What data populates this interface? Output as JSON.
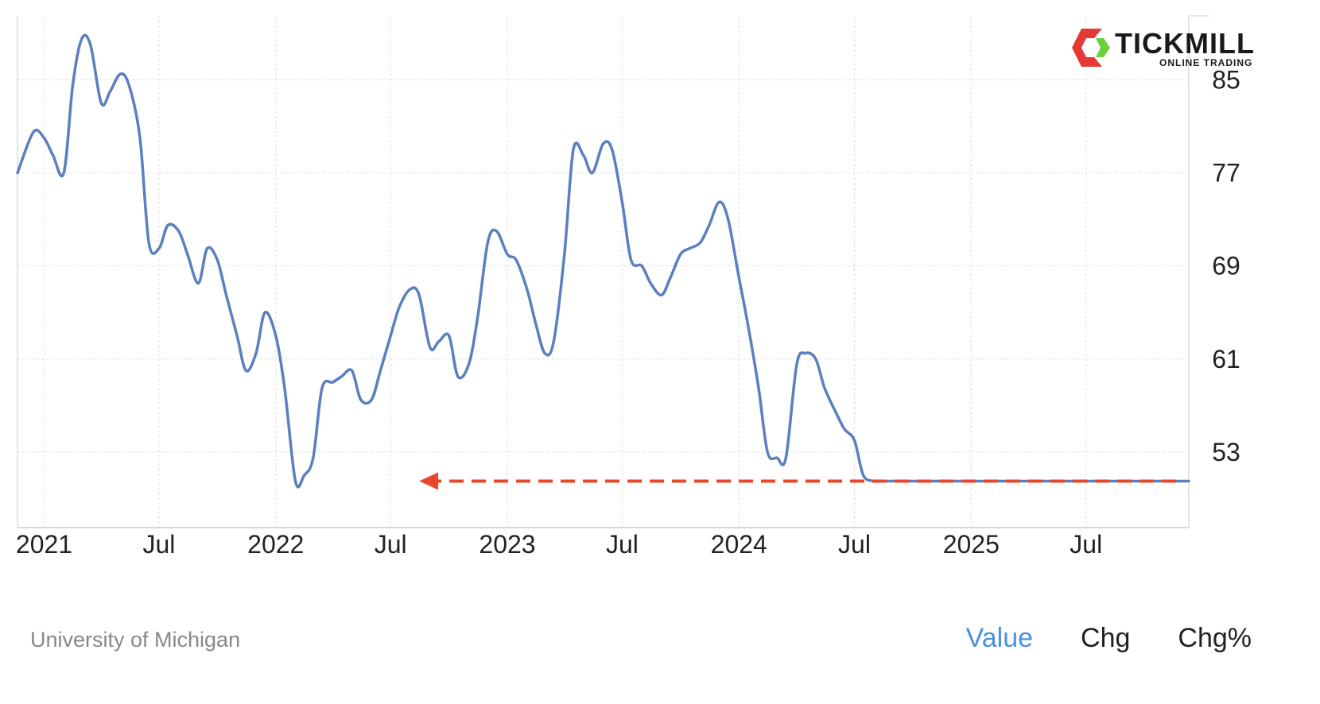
{
  "brand": {
    "name": "TICKMILL",
    "tagline": "ONLINE TRADING",
    "colors": {
      "red": "#e53935",
      "green": "#6ccf3c",
      "dark": "#1a1a1a"
    }
  },
  "source": "University of Michigan",
  "tabs": [
    {
      "label": "Value",
      "active": true
    },
    {
      "label": "Chg",
      "active": false
    },
    {
      "label": "Chg%",
      "active": false
    }
  ],
  "colors": {
    "line": "#5b7fbf",
    "arrow": "#e8472b",
    "grid": "#dddddd",
    "active_tab": "#4a90e2"
  },
  "chart_data": {
    "type": "line",
    "title": "",
    "xlabel": "",
    "ylabel": "",
    "x_ticks": [
      "2021",
      "Jul",
      "2022",
      "Jul",
      "2023",
      "Jul",
      "2024",
      "Jul",
      "2025",
      "Jul"
    ],
    "y_ticks": [
      85,
      77,
      69,
      61,
      53
    ],
    "ylim": [
      46.5,
      90.5
    ],
    "xlim": [
      "2020-11-20",
      "2025-12-10"
    ],
    "grid": true,
    "y_axis_position": "right",
    "series": [
      {
        "x": [
          "2020-11-20",
          "2020-12-15",
          "2021-01-01",
          "2021-01-15",
          "2021-02-01",
          "2021-02-15",
          "2021-03-01",
          "2021-03-15",
          "2021-04-01",
          "2021-04-15",
          "2021-05-01",
          "2021-05-15",
          "2021-06-01",
          "2021-06-15",
          "2021-07-01",
          "2021-07-15",
          "2021-08-01",
          "2021-08-15",
          "2021-09-01",
          "2021-09-15",
          "2021-10-01",
          "2021-10-15",
          "2021-11-01",
          "2021-11-15",
          "2021-12-01",
          "2021-12-15",
          "2022-01-01",
          "2022-01-15",
          "2022-02-01",
          "2022-02-15",
          "2022-03-01",
          "2022-03-15",
          "2022-04-01",
          "2022-04-15",
          "2022-05-01",
          "2022-05-15",
          "2022-06-01",
          "2022-06-15",
          "2022-07-01",
          "2022-07-15",
          "2022-08-01",
          "2022-08-15",
          "2022-09-01",
          "2022-09-15",
          "2022-10-01",
          "2022-10-15",
          "2022-11-01",
          "2022-11-15",
          "2022-12-01",
          "2022-12-15",
          "2023-01-01",
          "2023-01-15",
          "2023-02-01",
          "2023-02-15",
          "2023-03-01",
          "2023-03-15",
          "2023-04-01",
          "2023-04-15",
          "2023-05-01",
          "2023-05-15",
          "2023-06-01",
          "2023-06-15",
          "2023-07-01",
          "2023-07-15",
          "2023-08-01",
          "2023-08-15",
          "2023-09-01",
          "2023-09-15",
          "2023-10-01",
          "2023-10-15",
          "2023-11-01",
          "2023-11-15",
          "2023-12-01",
          "2023-12-15",
          "2024-01-01",
          "2024-01-15",
          "2024-02-01",
          "2024-02-15",
          "2024-03-01",
          "2024-03-15",
          "2024-04-01",
          "2024-04-15",
          "2024-05-01",
          "2024-05-15",
          "2024-06-01",
          "2024-06-15",
          "2024-07-01",
          "2024-07-15",
          "2024-08-01",
          "2024-08-15",
          "2024-09-01",
          "2024-09-15",
          "2024-10-01",
          "2024-10-15",
          "2024-11-01",
          "2024-11-15",
          "2024-12-01",
          "2024-12-15",
          "2025-01-01",
          "2025-01-15",
          "2025-02-01",
          "2025-02-15",
          "2025-03-01",
          "2025-03-15",
          "2025-04-01",
          "2025-04-15",
          "2025-05-01",
          "2025-05-15",
          "2025-06-01",
          "2025-06-15",
          "2025-07-01",
          "2025-07-15",
          "2025-08-01",
          "2025-08-15",
          "2025-09-01",
          "2025-09-15",
          "2025-10-01",
          "2025-10-15",
          "2025-11-01",
          "2025-11-15",
          "2025-12-01",
          "2025-12-10"
        ],
        "values": [
          77.0,
          80.5,
          80.0,
          78.5,
          77.0,
          84.5,
          88.5,
          88.0,
          83.0,
          84.0,
          85.5,
          84.5,
          80.0,
          71.0,
          70.5,
          72.5,
          72.0,
          70.0,
          67.5,
          70.5,
          69.5,
          66.5,
          63.0,
          60.0,
          61.5,
          65.0,
          63.0,
          58.5,
          50.5,
          51.0,
          52.5,
          58.5,
          59.0,
          59.5,
          60.0,
          57.5,
          57.5,
          60.0,
          63.0,
          65.5,
          67.0,
          66.5,
          62.0,
          62.5,
          63.0,
          59.5,
          60.5,
          64.5,
          71.0,
          72.0,
          70.0,
          69.5,
          67.0,
          64.0,
          61.5,
          62.5,
          70.0,
          79.0,
          78.5,
          77.0,
          79.5,
          79.0,
          74.5,
          69.5,
          69.0,
          67.5,
          66.5,
          68.0,
          70.0,
          70.5,
          71.0,
          72.5,
          74.5,
          73.0,
          68.0,
          64.0,
          58.5,
          53.0,
          52.5,
          52.5,
          60.5,
          61.5,
          61.0,
          58.5,
          56.5,
          55.0,
          54.0,
          51.0,
          50.5,
          50.5,
          50.5,
          50.5,
          50.5,
          50.5,
          50.5,
          50.5,
          50.5,
          50.5,
          50.5,
          50.5,
          50.5,
          50.5,
          50.5,
          50.5,
          50.5,
          50.5,
          50.5,
          50.5,
          50.5,
          50.5,
          50.5,
          50.5,
          50.5,
          50.5,
          50.5,
          50.5,
          50.5,
          50.5,
          50.5,
          50.5,
          50.5,
          50.5
        ]
      }
    ],
    "annotations": [
      {
        "type": "dashed-arrow",
        "from": {
          "x": "2025-11-20",
          "y": 50.5
        },
        "to": {
          "x": "2022-08-15",
          "y": 50.5
        }
      }
    ]
  }
}
